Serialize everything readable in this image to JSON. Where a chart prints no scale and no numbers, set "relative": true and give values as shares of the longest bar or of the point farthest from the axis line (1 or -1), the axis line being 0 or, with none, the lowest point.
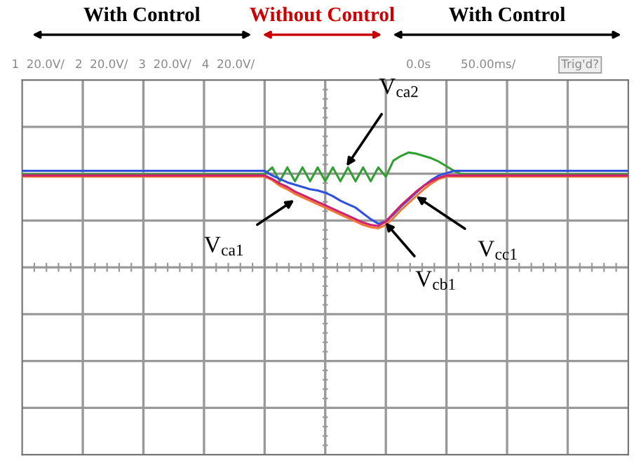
{
  "chart_data": {
    "type": "line",
    "relative": true,
    "grid": true,
    "marker": "none",
    "line_style": "solid",
    "categories": [
      null,
      null,
      null,
      null,
      null,
      null,
      null,
      null,
      null,
      null,
      null,
      null,
      null,
      null,
      null,
      null,
      null,
      null,
      null,
      null,
      null,
      null,
      null,
      null,
      null,
      null,
      null,
      null,
      null,
      null,
      null,
      null,
      null,
      null,
      null,
      null,
      null,
      null,
      null,
      null,
      null,
      null,
      null,
      null,
      null,
      null,
      null,
      null,
      null,
      null,
      null,
      null,
      null,
      null,
      null,
      null,
      null,
      null,
      null,
      null,
      null,
      null,
      null,
      null,
      null,
      null,
      null,
      null,
      null,
      null,
      null,
      null,
      null,
      null,
      null,
      null,
      null,
      null,
      null,
      null,
      null
    ],
    "series": [
      {
        "color": "#f07830",
        "values": [
          0.79,
          0.79,
          0.79,
          0.79,
          0.79,
          0.79,
          0.79,
          0.79,
          0.79,
          0.79,
          0.79,
          0.79,
          0.79,
          0.79,
          0.79,
          0.79,
          0.79,
          0.79,
          0.79,
          0.79,
          0.79,
          0.79,
          0.79,
          0.79,
          0.79,
          0.79,
          0.79,
          0.79,
          0.79,
          0.79,
          0.79,
          0.79,
          0.79,
          0.76,
          0.71,
          0.68,
          0.64,
          0.61,
          0.58,
          0.55,
          0.52,
          0.49,
          0.46,
          0.43,
          0.4,
          0.37,
          0.35,
          0.34,
          0.37,
          0.43,
          0.5,
          0.56,
          0.62,
          0.68,
          0.73,
          0.77,
          0.79,
          0.79,
          0.79,
          0.79,
          0.79,
          0.79,
          0.79,
          0.79,
          0.79,
          0.79,
          0.79,
          0.79,
          0.79,
          0.79,
          0.79,
          0.79,
          0.79,
          0.79,
          0.79,
          0.79,
          0.79,
          0.79,
          0.79,
          0.79,
          0.79
        ]
      },
      {
        "color": "#30a030",
        "values": [
          0.81,
          0.81,
          0.81,
          0.81,
          0.81,
          0.81,
          0.81,
          0.81,
          0.81,
          0.81,
          0.81,
          0.81,
          0.81,
          0.81,
          0.81,
          0.81,
          0.81,
          0.81,
          0.81,
          0.81,
          0.81,
          0.81,
          0.81,
          0.81,
          0.81,
          0.81,
          0.81,
          0.81,
          0.81,
          0.81,
          0.81,
          0.81,
          0.81,
          0.87,
          0.75,
          0.87,
          0.75,
          0.87,
          0.75,
          0.87,
          0.75,
          0.87,
          0.75,
          0.87,
          0.75,
          0.87,
          0.75,
          0.87,
          0.79,
          0.93,
          0.97,
          1.0,
          0.99,
          0.97,
          0.95,
          0.92,
          0.88,
          0.84,
          0.81,
          0.81,
          0.81,
          0.81,
          0.81,
          0.81,
          0.81,
          0.81,
          0.81,
          0.81,
          0.81,
          0.81,
          0.81,
          0.81,
          0.81,
          0.81,
          0.81,
          0.81,
          0.81,
          0.81,
          0.81,
          0.81,
          0.81
        ]
      },
      {
        "color": "#3050e0",
        "values": [
          0.84,
          0.84,
          0.84,
          0.84,
          0.84,
          0.84,
          0.84,
          0.84,
          0.84,
          0.84,
          0.84,
          0.84,
          0.84,
          0.84,
          0.84,
          0.84,
          0.84,
          0.84,
          0.84,
          0.84,
          0.84,
          0.84,
          0.84,
          0.84,
          0.84,
          0.84,
          0.84,
          0.84,
          0.84,
          0.84,
          0.84,
          0.84,
          0.84,
          0.8,
          0.77,
          0.74,
          0.72,
          0.7,
          0.68,
          0.67,
          0.65,
          0.62,
          0.58,
          0.55,
          0.52,
          0.47,
          0.42,
          0.38,
          0.4,
          0.46,
          0.53,
          0.59,
          0.65,
          0.71,
          0.76,
          0.8,
          0.82,
          0.84,
          0.84,
          0.84,
          0.84,
          0.84,
          0.84,
          0.84,
          0.84,
          0.84,
          0.84,
          0.84,
          0.84,
          0.84,
          0.84,
          0.84,
          0.84,
          0.84,
          0.84,
          0.84,
          0.84,
          0.84,
          0.84,
          0.84,
          0.84
        ]
      },
      {
        "color": "#d02070",
        "values": [
          0.8,
          0.8,
          0.8,
          0.8,
          0.8,
          0.8,
          0.8,
          0.8,
          0.8,
          0.8,
          0.8,
          0.8,
          0.8,
          0.8,
          0.8,
          0.8,
          0.8,
          0.8,
          0.8,
          0.8,
          0.8,
          0.8,
          0.8,
          0.8,
          0.8,
          0.8,
          0.8,
          0.8,
          0.8,
          0.8,
          0.8,
          0.8,
          0.8,
          0.77,
          0.73,
          0.7,
          0.66,
          0.63,
          0.6,
          0.57,
          0.54,
          0.51,
          0.48,
          0.45,
          0.42,
          0.39,
          0.37,
          0.36,
          0.4,
          0.47,
          0.54,
          0.6,
          0.66,
          0.71,
          0.75,
          0.78,
          0.8,
          0.8,
          0.8,
          0.8,
          0.8,
          0.8,
          0.8,
          0.8,
          0.8,
          0.8,
          0.8,
          0.8,
          0.8,
          0.8,
          0.8,
          0.8,
          0.8,
          0.8,
          0.8,
          0.8,
          0.8,
          0.8,
          0.8,
          0.8,
          0.8
        ]
      }
    ],
    "annotations": [
      "With Control",
      "Without Control",
      "With Control",
      "1  20.0V/",
      "2  20.0V/",
      "3  20.0V/",
      "4  20.0V/",
      "0.0s",
      "50.00ms/",
      "Trig'd?",
      "V$_{ca2}$",
      "V$_{ca1}$",
      "V$_{cb1}$",
      "V$_{cc1}$"
    ]
  }
}
